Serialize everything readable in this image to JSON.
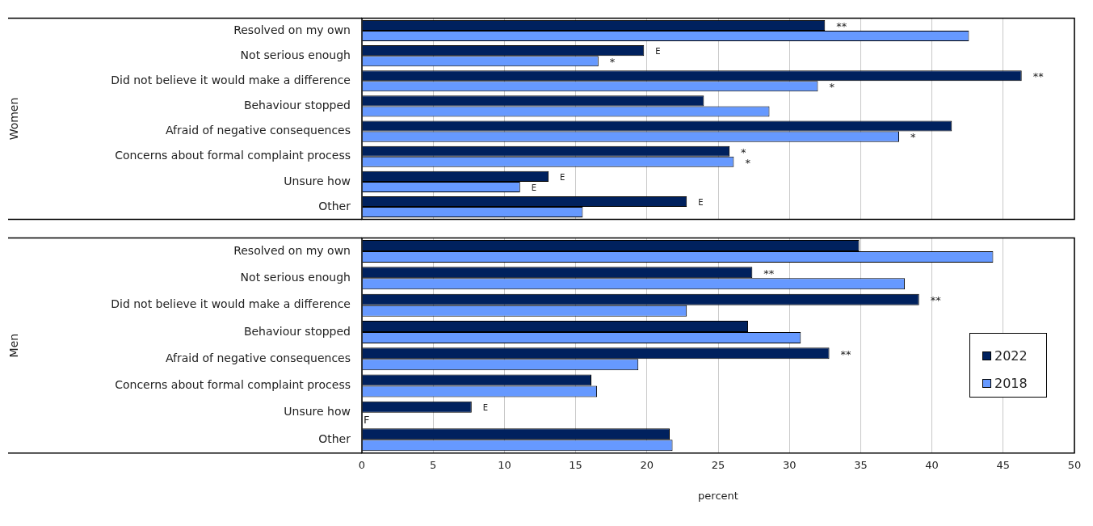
{
  "chart_data": [
    {
      "type": "bar",
      "orientation": "horizontal",
      "ylabel": "Women",
      "tick_labels": "y",
      "categories": [
        "Resolved on my own",
        "Not serious enough",
        "Did not believe it would make a difference",
        "Behaviour stopped",
        "Afraid of negative consequences",
        "Concerns about formal complaint process",
        "Unsure how",
        "Other"
      ],
      "series": [
        {
          "color": "#00215e",
          "values": [
            32.5,
            19.8,
            46.3,
            24.0,
            41.4,
            25.8,
            13.1,
            22.8
          ],
          "value_labels": [
            "**",
            "E",
            "**",
            null,
            null,
            "*",
            "E",
            "E"
          ]
        },
        {
          "color": "#6699ff",
          "values": [
            42.6,
            16.6,
            32.0,
            28.6,
            37.7,
            26.1,
            11.1,
            15.5
          ],
          "value_labels": [
            null,
            "*",
            "*",
            null,
            "*",
            "*",
            "E",
            null
          ]
        }
      ],
      "xlim": [
        0,
        50
      ],
      "xticks": [
        0,
        5,
        10,
        15,
        20,
        25,
        30,
        35,
        40,
        45,
        50
      ],
      "grid": "x"
    },
    {
      "type": "bar",
      "orientation": "horizontal",
      "ylabel": "Men",
      "xlabel": "percent",
      "categories": [
        "Resolved on my own",
        "Not serious enough",
        "Did not believe it would make a difference",
        "Behaviour stopped",
        "Afraid of negative consequences",
        "Concerns about formal complaint process",
        "Unsure how",
        "Other"
      ],
      "series": [
        {
          "name": "2022",
          "color": "#00215e",
          "values": [
            34.9,
            27.4,
            39.1,
            27.1,
            32.8,
            16.1,
            7.7,
            21.6
          ],
          "value_labels": [
            null,
            "**",
            "**",
            null,
            "**",
            null,
            "E",
            null
          ]
        },
        {
          "name": "2018",
          "color": "#6699ff",
          "values": [
            44.3,
            38.1,
            22.8,
            30.8,
            19.4,
            16.5,
            null,
            21.8
          ],
          "value_labels": [
            null,
            null,
            null,
            null,
            null,
            null,
            "F",
            null
          ]
        }
      ],
      "xlim": [
        0,
        50
      ],
      "xticks": [
        0,
        5,
        10,
        15,
        20,
        25,
        30,
        35,
        40,
        45,
        50
      ],
      "grid": "x",
      "legend": "bottom right"
    }
  ]
}
